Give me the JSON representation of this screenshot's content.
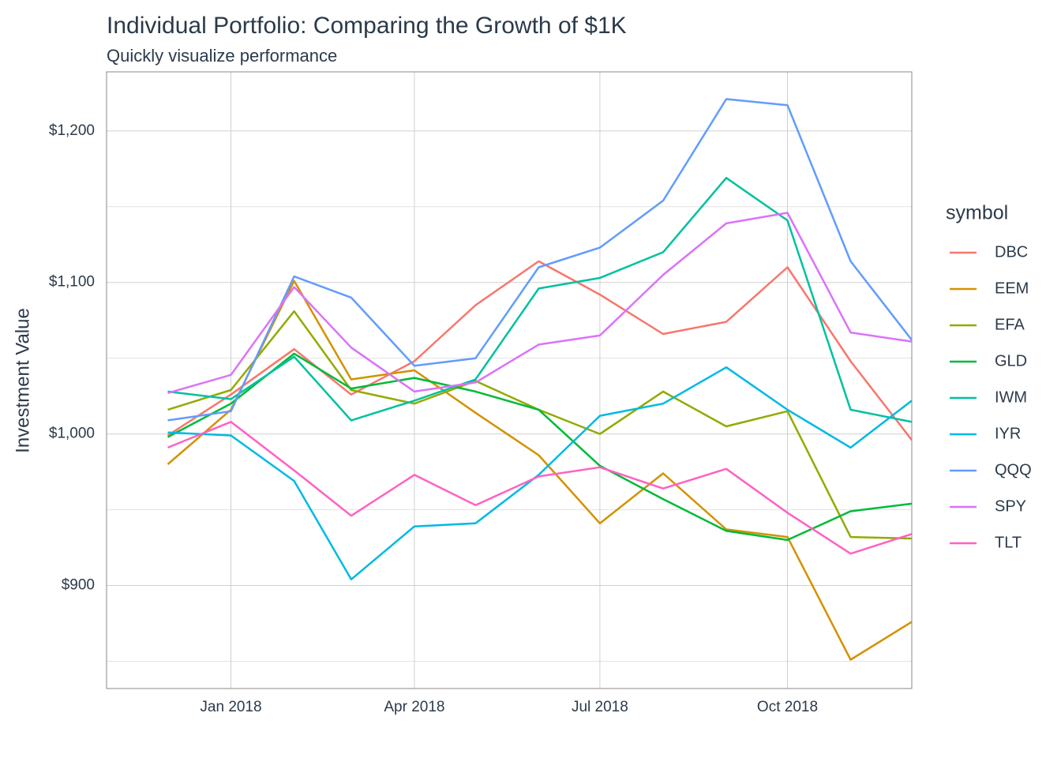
{
  "chart_data": {
    "type": "line",
    "title": "Individual Portfolio: Comparing the Growth of $1K",
    "subtitle": "Quickly visualize performance",
    "y_label": "Investment Value",
    "legend_title": "symbol",
    "legend_position": "right",
    "grid": true,
    "x": [
      "2017-11",
      "2017-12",
      "2018-01",
      "2018-02",
      "2018-03",
      "2018-04",
      "2018-05",
      "2018-06",
      "2018-07",
      "2018-08",
      "2018-09",
      "2018-10",
      "2018-11"
    ],
    "xlim": [
      "2017-11",
      "2018-12"
    ],
    "xticks": [
      {
        "value": "2018-01",
        "label": "Jan 2018"
      },
      {
        "value": "2018-04",
        "label": "Apr 2018"
      },
      {
        "value": "2018-07",
        "label": "Jul 2018"
      },
      {
        "value": "2018-10",
        "label": "Oct 2018"
      }
    ],
    "ylim": [
      832,
      1239
    ],
    "yticks": [
      {
        "value": 900,
        "label": "$900"
      },
      {
        "value": 1000,
        "label": "$1,000"
      },
      {
        "value": 1100,
        "label": "$1,100"
      },
      {
        "value": 1200,
        "label": "$1,200"
      }
    ],
    "series": [
      {
        "name": "DBC",
        "color": "#F8766D",
        "values": [
          999,
          1026,
          1056,
          1026,
          1048,
          1085,
          1114,
          1092,
          1066,
          1074,
          1110,
          1048,
          996
        ]
      },
      {
        "name": "EEM",
        "color": "#D39200",
        "values": [
          980,
          1016,
          1101,
          1036,
          1042,
          1014,
          986,
          941,
          974,
          937,
          932,
          851,
          876
        ]
      },
      {
        "name": "EFA",
        "color": "#93AA00",
        "values": [
          1016,
          1029,
          1081,
          1029,
          1020,
          1035,
          1016,
          1000,
          1028,
          1005,
          1015,
          932,
          931
        ]
      },
      {
        "name": "GLD",
        "color": "#00BA38",
        "values": [
          998,
          1020,
          1053,
          1030,
          1037,
          1028,
          1016,
          979,
          957,
          936,
          930,
          949,
          954
        ]
      },
      {
        "name": "IWM",
        "color": "#00C19F",
        "values": [
          1028,
          1023,
          1051,
          1009,
          1022,
          1036,
          1096,
          1103,
          1120,
          1169,
          1141,
          1016,
          1008
        ]
      },
      {
        "name": "IYR",
        "color": "#00B9E3",
        "values": [
          1001,
          999,
          969,
          904,
          939,
          941,
          973,
          1012,
          1020,
          1044,
          1016,
          991,
          1022
        ]
      },
      {
        "name": "QQQ",
        "color": "#619CFF",
        "values": [
          1009,
          1015,
          1104,
          1090,
          1045,
          1050,
          1110,
          1123,
          1154,
          1221,
          1217,
          1114,
          1062
        ]
      },
      {
        "name": "SPY",
        "color": "#DB72FB",
        "values": [
          1027,
          1039,
          1097,
          1057,
          1028,
          1034,
          1059,
          1065,
          1105,
          1139,
          1146,
          1067,
          1061
        ]
      },
      {
        "name": "TLT",
        "color": "#FF61C3",
        "values": [
          991,
          1008,
          976,
          946,
          973,
          953,
          972,
          978,
          964,
          977,
          948,
          921,
          934
        ]
      }
    ]
  }
}
